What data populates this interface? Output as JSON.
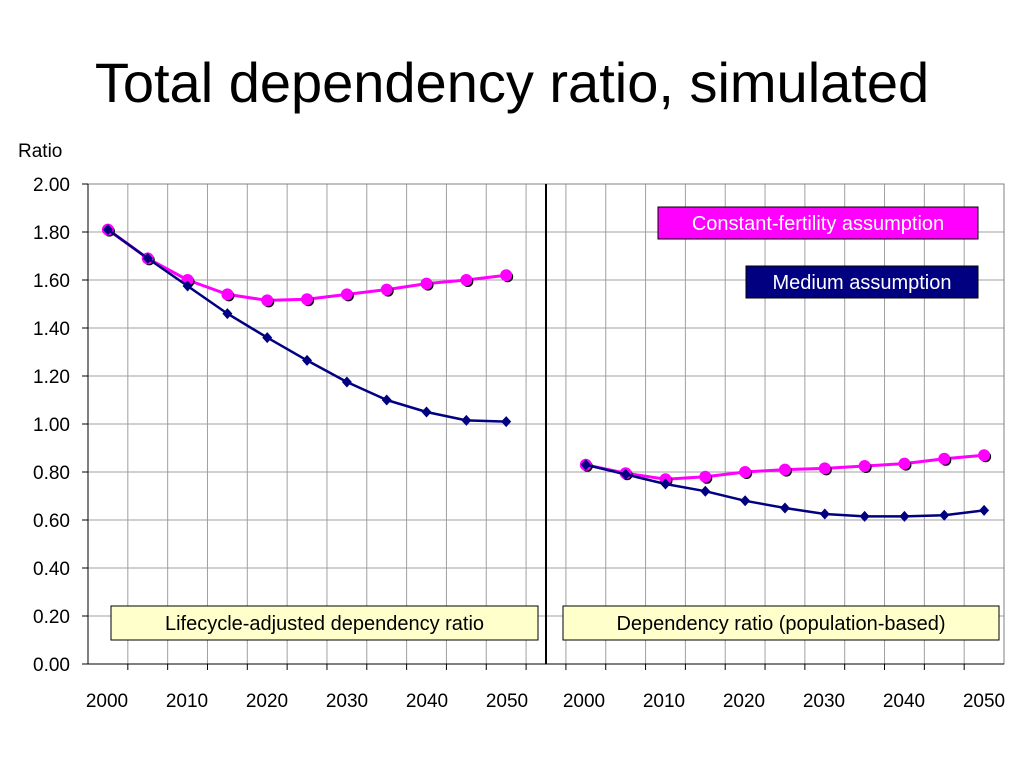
{
  "slide": {
    "title": "Total dependency ratio, simulated"
  },
  "chart_data": {
    "type": "line",
    "ylabel": "Ratio",
    "ylim": [
      0,
      2.0
    ],
    "y_ticks": [
      "0.00",
      "0.20",
      "0.40",
      "0.60",
      "0.80",
      "1.00",
      "1.20",
      "1.40",
      "1.60",
      "1.80",
      "2.00"
    ],
    "x_ticks": [
      "2000",
      "2010",
      "2020",
      "2030",
      "2040",
      "2050"
    ],
    "grid": true,
    "colors": {
      "constant": "#ff00ff",
      "medium": "#000080",
      "label_bg_note": "#ffffcc"
    },
    "panels": [
      {
        "label": "Lifecycle-adjusted dependency ratio",
        "x": [
          2000,
          2005,
          2010,
          2015,
          2020,
          2025,
          2030,
          2035,
          2040,
          2045,
          2050
        ],
        "series": [
          {
            "name": "Constant-fertility assumption",
            "values": [
              1.81,
              1.69,
              1.6,
              1.54,
              1.515,
              1.52,
              1.54,
              1.56,
              1.585,
              1.6,
              1.62
            ]
          },
          {
            "name": "Medium assumption",
            "values": [
              1.81,
              1.69,
              1.575,
              1.46,
              1.36,
              1.265,
              1.175,
              1.1,
              1.05,
              1.015,
              1.01
            ]
          }
        ]
      },
      {
        "label": "Dependency ratio (population-based)",
        "x": [
          2000,
          2005,
          2010,
          2015,
          2020,
          2025,
          2030,
          2035,
          2040,
          2045,
          2050
        ],
        "series": [
          {
            "name": "Constant-fertility assumption",
            "values": [
              0.83,
              0.795,
              0.77,
              0.78,
              0.8,
              0.81,
              0.815,
              0.825,
              0.835,
              0.855,
              0.87
            ]
          },
          {
            "name": "Medium assumption",
            "values": [
              0.83,
              0.79,
              0.75,
              0.72,
              0.68,
              0.65,
              0.625,
              0.615,
              0.615,
              0.62,
              0.64
            ]
          }
        ]
      }
    ],
    "legend": [
      "Constant-fertility assumption",
      "Medium assumption"
    ]
  }
}
